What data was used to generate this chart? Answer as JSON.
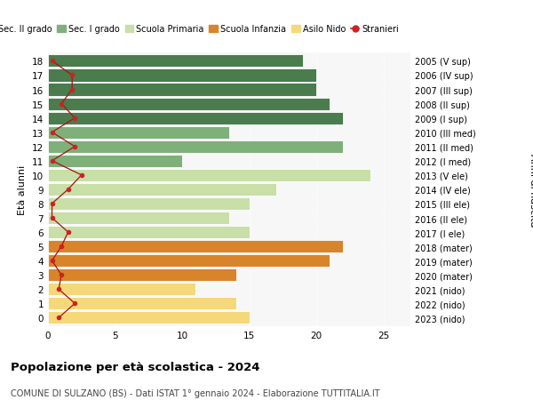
{
  "ages": [
    18,
    17,
    16,
    15,
    14,
    13,
    12,
    11,
    10,
    9,
    8,
    7,
    6,
    5,
    4,
    3,
    2,
    1,
    0
  ],
  "right_labels": [
    "2005 (V sup)",
    "2006 (IV sup)",
    "2007 (III sup)",
    "2008 (II sup)",
    "2009 (I sup)",
    "2010 (III med)",
    "2011 (II med)",
    "2012 (I med)",
    "2013 (V ele)",
    "2014 (IV ele)",
    "2015 (III ele)",
    "2016 (II ele)",
    "2017 (I ele)",
    "2018 (mater)",
    "2019 (mater)",
    "2020 (mater)",
    "2021 (nido)",
    "2022 (nido)",
    "2023 (nido)"
  ],
  "bar_values": [
    19,
    20,
    20,
    21,
    22,
    13.5,
    22,
    10,
    24,
    17,
    15,
    13.5,
    15,
    22,
    21,
    14,
    11,
    14,
    15
  ],
  "bar_colors": [
    "#4a7c4e",
    "#4a7c4e",
    "#4a7c4e",
    "#4a7c4e",
    "#4a7c4e",
    "#7fb07a",
    "#7fb07a",
    "#7fb07a",
    "#c8dfa8",
    "#c8dfa8",
    "#c8dfa8",
    "#c8dfa8",
    "#c8dfa8",
    "#d8842a",
    "#d8842a",
    "#d8842a",
    "#f5d87a",
    "#f5d87a",
    "#f5d87a"
  ],
  "stranieri_x": [
    0.3,
    1.8,
    1.8,
    1.0,
    2.0,
    0.3,
    2.0,
    0.3,
    2.5,
    1.5,
    0.3,
    0.3,
    1.5,
    1.0,
    0.3,
    1.0,
    0.8,
    2.0,
    0.8
  ],
  "legend_labels": [
    "Sec. II grado",
    "Sec. I grado",
    "Scuola Primaria",
    "Scuola Infanzia",
    "Asilo Nido",
    "Stranieri"
  ],
  "legend_colors": [
    "#4a7c4e",
    "#7fb07a",
    "#c8dfa8",
    "#d8842a",
    "#f5d87a",
    "#cc2222"
  ],
  "title": "Popolazione per età scolastica - 2024",
  "subtitle": "COMUNE DI SULZANO (BS) - Dati ISTAT 1° gennaio 2024 - Elaborazione TUTTITALIA.IT",
  "ylabel_left": "Età alunni",
  "ylabel_right": "Anni di nascita",
  "xlim": [
    0,
    27
  ],
  "xticks": [
    0,
    5,
    10,
    15,
    20,
    25
  ],
  "bg_color": "#ffffff",
  "plot_bg_color": "#f7f7f7"
}
